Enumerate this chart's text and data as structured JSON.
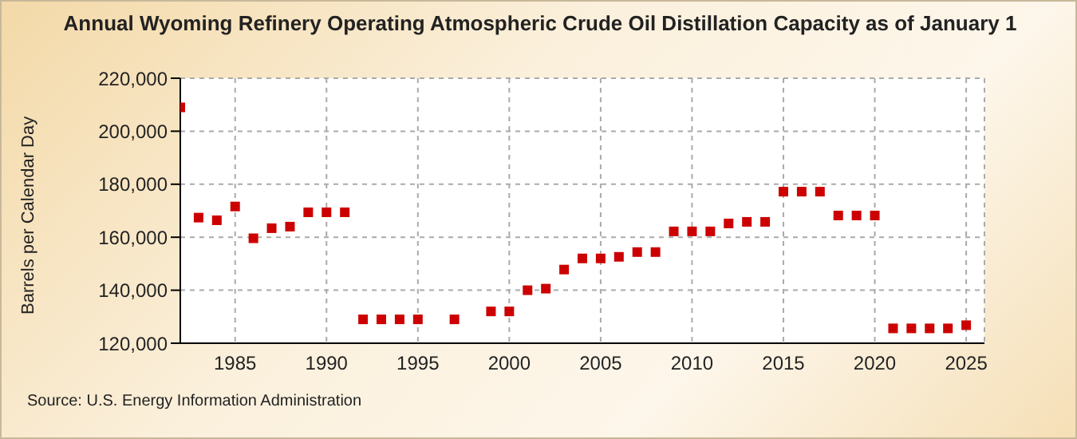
{
  "chart_data": {
    "type": "scatter",
    "title": "Annual Wyoming Refinery Operating Atmospheric Crude Oil Distillation Capacity as of January 1",
    "ylabel": "Barrels per Calendar Day",
    "annotations": [
      "Source: U.S. Energy Information Administration"
    ],
    "x": [
      1982,
      1983,
      1984,
      1985,
      1986,
      1987,
      1988,
      1989,
      1990,
      1991,
      1992,
      1993,
      1994,
      1995,
      1997,
      1999,
      2000,
      2001,
      2002,
      2003,
      2004,
      2005,
      2006,
      2007,
      2008,
      2009,
      2010,
      2011,
      2012,
      2013,
      2014,
      2015,
      2016,
      2017,
      2018,
      2019,
      2020,
      2021,
      2022,
      2023,
      2024,
      2025
    ],
    "series": [
      {
        "color": "#cc0000",
        "values": [
          209000,
          167400,
          166400,
          171600,
          159600,
          163400,
          164000,
          169400,
          169400,
          169400,
          129000,
          129000,
          129000,
          129000,
          129000,
          132000,
          132000,
          140000,
          140600,
          147800,
          152000,
          152000,
          152600,
          154400,
          154400,
          162200,
          162200,
          162200,
          165200,
          165800,
          165800,
          177200,
          177200,
          177200,
          168200,
          168200,
          168200,
          125600,
          125600,
          125600,
          125600,
          126800
        ]
      }
    ],
    "xlim": [
      1982,
      2026
    ],
    "xticks": [
      1985,
      1990,
      1995,
      2000,
      2005,
      2010,
      2015,
      2020,
      2025
    ],
    "ylim": [
      120000,
      220000
    ],
    "yticks": [
      {
        "value": 120000,
        "label": "120,000"
      },
      {
        "value": 140000,
        "label": "140,000"
      },
      {
        "value": 160000,
        "label": "160,000"
      },
      {
        "value": 180000,
        "label": "180,000"
      },
      {
        "value": 200000,
        "label": "200,000"
      },
      {
        "value": 220000,
        "label": "220,000"
      }
    ],
    "grid": true,
    "marker": "square"
  }
}
